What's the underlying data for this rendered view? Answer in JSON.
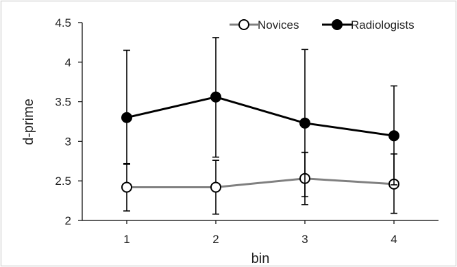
{
  "chart_data": {
    "type": "line",
    "xlabel": "bin",
    "ylabel": "d-prime",
    "categories": [
      "1",
      "2",
      "3",
      "4"
    ],
    "ylim": [
      2,
      4.5
    ],
    "yticks": [
      "2",
      "2.5",
      "3",
      "3.5",
      "4",
      "4.5"
    ],
    "grid": false,
    "legend_position": "top-right",
    "series": [
      {
        "name": "Novices",
        "values": [
          2.42,
          2.42,
          2.53,
          2.46
        ],
        "error_upper": [
          2.71,
          2.76,
          2.86,
          2.84
        ],
        "error_lower": [
          2.12,
          2.08,
          2.2,
          2.09
        ],
        "line_color": "#808080",
        "marker_fill": "#ffffff",
        "marker_stroke": "#000000"
      },
      {
        "name": "Radiologists",
        "values": [
          3.3,
          3.56,
          3.23,
          3.07
        ],
        "error_upper": [
          4.15,
          4.31,
          4.16,
          3.7
        ],
        "error_lower": [
          2.72,
          2.8,
          2.3,
          2.45
        ],
        "line_color": "#000000",
        "marker_fill": "#000000",
        "marker_stroke": "#000000"
      }
    ]
  }
}
